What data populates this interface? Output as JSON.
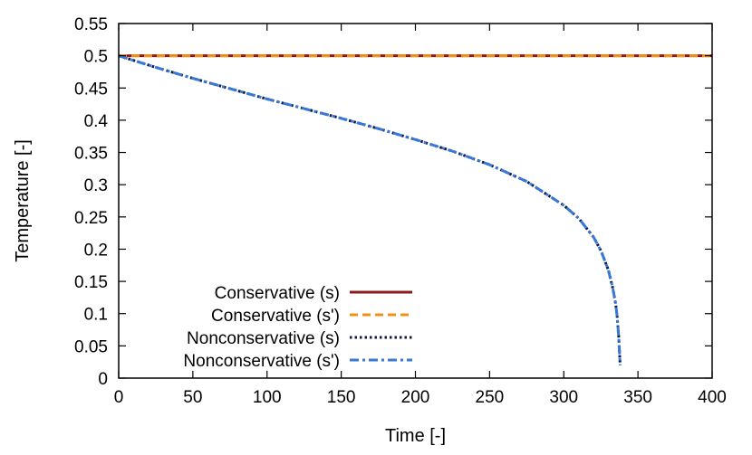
{
  "chart_data": {
    "type": "line",
    "xlabel": "Time [-]",
    "ylabel": "Temperature [-]",
    "xlim": [
      0,
      400
    ],
    "ylim": [
      0,
      0.55
    ],
    "xticks": [
      "0",
      "50",
      "100",
      "150",
      "200",
      "250",
      "300",
      "350",
      "400"
    ],
    "yticks": [
      "0",
      "0.05",
      "0.1",
      "0.15",
      "0.2",
      "0.25",
      "0.3",
      "0.35",
      "0.4",
      "0.45",
      "0.5",
      "0.55"
    ],
    "grid": false,
    "legend_position": "bottom-left",
    "series": [
      {
        "name": "Conservative (s)",
        "color": "#8b1a1a",
        "style": "solid",
        "x": [
          0,
          400
        ],
        "y": [
          0.5,
          0.5
        ]
      },
      {
        "name": "Conservative (s')",
        "color": "#f0901a",
        "style": "dashed",
        "x": [
          0,
          400
        ],
        "y": [
          0.5,
          0.5
        ]
      },
      {
        "name": "Nonconservative (s)",
        "color": "#0d1a40",
        "style": "dotted",
        "x": [
          0,
          25,
          50,
          75,
          100,
          125,
          150,
          175,
          200,
          225,
          250,
          275,
          300,
          310,
          320,
          325,
          330,
          333,
          335,
          336,
          337,
          338
        ],
        "y": [
          0.5,
          0.482,
          0.465,
          0.449,
          0.433,
          0.418,
          0.403,
          0.387,
          0.37,
          0.352,
          0.331,
          0.305,
          0.268,
          0.248,
          0.219,
          0.198,
          0.168,
          0.14,
          0.115,
          0.095,
          0.065,
          0.02
        ]
      },
      {
        "name": "Nonconservative (s')",
        "color": "#3a78d8",
        "style": "dashdot",
        "x": [
          0,
          25,
          50,
          75,
          100,
          125,
          150,
          175,
          200,
          225,
          250,
          275,
          300,
          310,
          320,
          325,
          330,
          333,
          335,
          336,
          337,
          338
        ],
        "y": [
          0.5,
          0.482,
          0.465,
          0.449,
          0.433,
          0.418,
          0.403,
          0.387,
          0.37,
          0.352,
          0.331,
          0.305,
          0.268,
          0.248,
          0.219,
          0.198,
          0.168,
          0.14,
          0.115,
          0.095,
          0.065,
          0.02
        ]
      }
    ]
  }
}
